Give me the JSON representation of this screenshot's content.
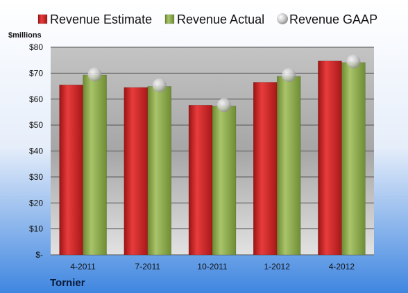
{
  "chart_data": {
    "type": "bar",
    "ylabel": "$millions",
    "brand": "Tornier",
    "categories": [
      "4-2011",
      "7-2011",
      "10-2011",
      "1-2012",
      "4-2012"
    ],
    "series": [
      {
        "name": "Revenue Estimate",
        "kind": "bar",
        "color": "#d42a2a",
        "values": [
          65.5,
          64.5,
          57.7,
          66.5,
          74.7
        ]
      },
      {
        "name": "Revenue Actual",
        "kind": "bar",
        "color": "#8fae4b",
        "values": [
          69.3,
          64.9,
          57.3,
          68.8,
          74.1
        ]
      },
      {
        "name": "Revenue GAAP",
        "kind": "marker",
        "color": "#c0c0c0",
        "values": [
          69.5,
          65.3,
          57.7,
          69.3,
          74.5
        ]
      }
    ],
    "yticks": [
      "$-",
      "$10",
      "$20",
      "$30",
      "$40",
      "$50",
      "$60",
      "$70",
      "$80"
    ],
    "ylim": [
      0,
      80
    ],
    "legend_position": "top",
    "grid": true
  }
}
